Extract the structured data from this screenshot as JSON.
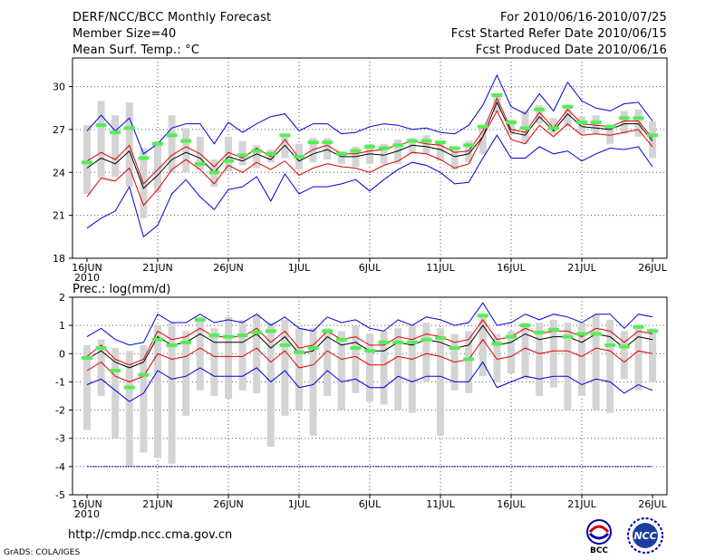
{
  "header": {
    "title": "DERF/NCC/BCC Monthly Forecast",
    "member_size": "Member Size=40",
    "variable": "Mean Surf. Temp.: °C",
    "forecast_period": "For 2010/06/16-2010/07/25",
    "started": "Fcst Started Refer Date 2010/06/15",
    "produced": "Fcst Produced Date 2010/06/16"
  },
  "footer": {
    "url": "http://cmdp.ncc.cma.gov.cn",
    "grads": "GrADS: COLA/IGES",
    "logo_left": "BCC",
    "logo_right": "NCC"
  },
  "colors": {
    "max_line": "#0000dd",
    "min_line": "#0000dd",
    "quantile_line": "#dd0000",
    "mean_line": "#000000",
    "box": "#d4d4d4",
    "marker": "#55ee55",
    "grid": "#555555"
  },
  "chart_data": [
    {
      "type": "line",
      "title": "Mean Surf. Temp.: °C",
      "ylim": [
        18,
        32
      ],
      "yticks": [
        18,
        21,
        24,
        27,
        30
      ],
      "x_tick_days": [
        0,
        5,
        10,
        15,
        20,
        25,
        30,
        35,
        40
      ],
      "x_tick_labels": [
        "16JUN",
        "21JUN",
        "26JUN",
        "1JUL",
        "6JUL",
        "11JUL",
        "16JUL",
        "21JUL",
        "26JUL"
      ],
      "x_year_label": "2010",
      "series": [
        {
          "name": "max",
          "values": [
            20.1,
            20.8,
            21.3,
            23.0,
            19.5,
            20.3,
            22.5,
            23.5,
            22.3,
            21.4,
            22.8,
            23.0,
            23.7,
            22.0,
            23.9,
            22.5,
            23.0,
            23.0,
            23.2,
            23.5,
            22.7,
            23.5,
            24.2,
            24.7,
            24.5,
            24.0,
            23.2,
            23.3,
            25.0,
            26.6,
            25.0,
            25.0,
            25.8,
            25.3,
            25.5,
            24.8,
            25.3,
            25.7,
            25.6,
            25.8,
            24.4
          ]
        },
        {
          "name": "upper",
          "values": [
            22.3,
            23.6,
            23.4,
            24.3,
            21.7,
            22.8,
            24.2,
            24.9,
            24.2,
            23.2,
            24.5,
            24.0,
            24.7,
            24.2,
            24.8,
            23.8,
            24.3,
            24.6,
            24.4,
            24.3,
            24.0,
            24.5,
            24.8,
            25.4,
            25.3,
            24.9,
            24.3,
            24.6,
            26.5,
            28.3,
            26.3,
            26.0,
            27.3,
            26.5,
            27.4,
            26.6,
            26.7,
            26.6,
            26.8,
            27.0,
            25.8
          ]
        },
        {
          "name": "mean",
          "values": [
            24.3,
            25.0,
            24.6,
            25.5,
            22.9,
            23.8,
            24.9,
            25.4,
            25.0,
            24.0,
            25.1,
            24.8,
            25.3,
            24.9,
            25.9,
            24.8,
            25.3,
            25.6,
            25.1,
            25.1,
            25.3,
            25.2,
            25.5,
            25.9,
            25.8,
            25.6,
            25.1,
            25.3,
            26.5,
            28.9,
            26.8,
            26.6,
            27.9,
            26.9,
            28.1,
            27.2,
            27.1,
            27.0,
            27.4,
            27.4,
            26.2
          ]
        },
        {
          "name": "lower",
          "values": [
            24.8,
            25.4,
            24.9,
            25.9,
            23.2,
            24.2,
            25.2,
            25.8,
            25.3,
            24.4,
            25.4,
            25.0,
            25.7,
            25.1,
            26.3,
            25.0,
            25.6,
            25.9,
            25.3,
            25.3,
            25.5,
            25.6,
            25.9,
            26.2,
            26.0,
            25.9,
            25.4,
            25.5,
            26.9,
            29.2,
            27.0,
            26.8,
            28.2,
            27.1,
            28.4,
            27.4,
            27.3,
            27.2,
            27.6,
            27.6,
            26.4
          ]
        },
        {
          "name": "min",
          "values": [
            26.9,
            28.0,
            26.9,
            27.8,
            25.3,
            26.0,
            27.1,
            27.4,
            27.4,
            26.0,
            27.5,
            26.8,
            27.4,
            27.9,
            28.1,
            26.9,
            27.4,
            27.4,
            26.7,
            26.8,
            27.2,
            27.4,
            27.3,
            27.0,
            27.1,
            26.8,
            26.7,
            27.3,
            28.7,
            30.8,
            28.6,
            28.1,
            29.5,
            28.3,
            30.3,
            29.0,
            28.5,
            28.3,
            28.8,
            28.9,
            27.6
          ]
        },
        {
          "name": "box_low",
          "values": [
            22.5,
            23.6,
            23.7,
            23.0,
            20.8,
            22.6,
            24.0,
            24.0,
            24.2,
            23.0,
            24.1,
            24.5,
            24.3,
            24.7,
            25.0,
            24.2,
            24.7,
            24.9,
            24.6,
            24.4,
            24.6,
            24.6,
            24.6,
            25.3,
            25.3,
            24.8,
            24.2,
            24.7,
            25.3,
            28.2,
            26.7,
            26.0,
            27.4,
            26.7,
            27.2,
            26.7,
            26.7,
            26.0,
            26.7,
            26.5,
            25.0
          ]
        },
        {
          "name": "box_high",
          "values": [
            27.3,
            29.0,
            28.0,
            28.9,
            25.7,
            26.2,
            28.0,
            27.1,
            26.5,
            24.9,
            26.5,
            26.2,
            25.9,
            25.6,
            26.6,
            26.0,
            26.4,
            26.4,
            25.5,
            25.8,
            26.0,
            26.0,
            26.3,
            26.4,
            26.6,
            26.2,
            25.7,
            26.2,
            27.1,
            29.5,
            27.7,
            28.3,
            28.7,
            27.8,
            28.7,
            27.9,
            28.0,
            27.3,
            28.3,
            28.4,
            27.6
          ]
        },
        {
          "name": "marker",
          "values": [
            24.7,
            27.3,
            26.8,
            27.1,
            25.0,
            26.0,
            26.6,
            26.2,
            24.6,
            24.0,
            24.8,
            25.2,
            25.5,
            25.3,
            26.6,
            25.1,
            26.1,
            26.1,
            25.3,
            25.5,
            25.8,
            25.7,
            25.9,
            26.2,
            26.2,
            26.1,
            25.7,
            25.9,
            27.2,
            29.4,
            27.5,
            27.1,
            28.4,
            27.1,
            28.6,
            27.5,
            27.5,
            27.2,
            27.8,
            27.8,
            26.6
          ]
        }
      ]
    },
    {
      "type": "line",
      "title": "Prec.: log(mm/d)",
      "ylim": [
        -5,
        2
      ],
      "yticks": [
        -5,
        -4,
        -3,
        -2,
        -1,
        0,
        1,
        2
      ],
      "x_tick_days": [
        0,
        5,
        10,
        15,
        20,
        25,
        30,
        35,
        40
      ],
      "x_tick_labels": [
        "16JUN",
        "21JUN",
        "26JUN",
        "1JUL",
        "6JUL",
        "11JUL",
        "16JUL",
        "21JUL",
        "26JUL"
      ],
      "x_year_label": "2010",
      "reference_line": -4.0,
      "series": [
        {
          "name": "max",
          "values": [
            0.6,
            0.9,
            0.5,
            0.3,
            0.4,
            1.4,
            1.1,
            1.1,
            1.4,
            1.1,
            1.2,
            1.1,
            1.4,
            1.0,
            1.3,
            0.9,
            0.8,
            1.3,
            1.1,
            1.2,
            0.9,
            0.8,
            1.2,
            1.0,
            1.3,
            1.2,
            1.0,
            1.1,
            1.8,
            1.0,
            1.1,
            1.4,
            1.2,
            1.4,
            1.3,
            1.1,
            1.4,
            1.4,
            0.9,
            1.4,
            1.3
          ]
        },
        {
          "name": "upper",
          "values": [
            -0.1,
            0.3,
            -0.2,
            -0.4,
            -0.2,
            0.8,
            0.5,
            0.6,
            0.9,
            0.6,
            0.6,
            0.6,
            0.9,
            0.4,
            0.8,
            0.2,
            0.3,
            0.8,
            0.5,
            0.6,
            0.3,
            0.3,
            0.6,
            0.5,
            0.7,
            0.6,
            0.4,
            0.5,
            1.2,
            0.5,
            0.6,
            0.9,
            0.7,
            0.8,
            0.8,
            0.6,
            0.9,
            0.8,
            0.4,
            0.8,
            0.7
          ]
        },
        {
          "name": "mean",
          "values": [
            -0.2,
            0.1,
            -0.3,
            -0.5,
            -0.3,
            0.6,
            0.3,
            0.4,
            0.7,
            0.4,
            0.4,
            0.4,
            0.7,
            0.2,
            0.6,
            0.0,
            0.1,
            0.6,
            0.3,
            0.4,
            0.1,
            0.1,
            0.4,
            0.3,
            0.5,
            0.4,
            0.2,
            0.3,
            1.0,
            0.3,
            0.4,
            0.7,
            0.5,
            0.6,
            0.6,
            0.4,
            0.7,
            0.6,
            0.2,
            0.6,
            0.5
          ]
        },
        {
          "name": "lower",
          "values": [
            -0.6,
            -0.3,
            -0.8,
            -1.0,
            -0.8,
            0.0,
            -0.2,
            -0.1,
            0.2,
            -0.1,
            -0.1,
            -0.1,
            0.2,
            -0.3,
            0.1,
            -0.5,
            -0.4,
            0.1,
            -0.2,
            -0.1,
            -0.4,
            -0.4,
            -0.1,
            -0.2,
            0.0,
            -0.1,
            -0.3,
            -0.2,
            0.5,
            -0.2,
            -0.1,
            0.2,
            0.0,
            0.1,
            0.1,
            -0.1,
            0.2,
            0.1,
            -0.3,
            0.1,
            0.0
          ]
        },
        {
          "name": "min",
          "values": [
            -1.1,
            -0.9,
            -1.3,
            -1.7,
            -1.4,
            -0.6,
            -0.9,
            -0.8,
            -0.5,
            -0.8,
            -0.8,
            -0.8,
            -0.5,
            -1.0,
            -0.6,
            -1.2,
            -1.1,
            -0.6,
            -1.0,
            -0.9,
            -1.2,
            -1.2,
            -0.8,
            -1.0,
            -0.8,
            -0.8,
            -1.0,
            -1.0,
            -0.3,
            -1.2,
            -1.0,
            -0.8,
            -0.9,
            -0.8,
            -0.8,
            -1.1,
            -0.9,
            -1.0,
            -1.4,
            -1.1,
            -1.3
          ]
        },
        {
          "name": "box_low",
          "values": [
            -2.7,
            -1.5,
            -3.0,
            -4.0,
            -3.5,
            -3.7,
            -3.9,
            -2.2,
            -1.3,
            -1.5,
            -1.6,
            -1.3,
            -1.4,
            -3.3,
            -2.2,
            -2.0,
            -2.9,
            -1.5,
            -2.0,
            -1.4,
            -1.7,
            -1.8,
            -2.0,
            -2.1,
            -1.0,
            -2.9,
            -1.3,
            -1.4,
            -0.8,
            -1.0,
            -0.7,
            -0.9,
            -1.5,
            -1.2,
            -2.0,
            -1.5,
            -2.0,
            -2.1,
            -0.9,
            -1.3,
            -1.0
          ]
        },
        {
          "name": "box_high",
          "values": [
            0.3,
            0.5,
            0.2,
            0.1,
            0.3,
            1.0,
            1.1,
            0.8,
            1.3,
            0.9,
            1.3,
            1.2,
            1.4,
            1.1,
            1.2,
            0.9,
            0.9,
            0.9,
            0.8,
            1.0,
            0.7,
            0.8,
            0.9,
            1.0,
            1.1,
            0.9,
            0.7,
            0.8,
            1.3,
            0.7,
            0.8,
            1.1,
            1.1,
            1.2,
            1.1,
            1.1,
            1.4,
            1.2,
            0.8,
            1.0,
            0.9
          ]
        },
        {
          "name": "marker",
          "values": [
            -0.15,
            0.2,
            -0.6,
            -1.2,
            -0.75,
            0.5,
            0.3,
            0.4,
            1.2,
            0.65,
            0.6,
            0.65,
            0.75,
            0.8,
            0.3,
            0.05,
            0.2,
            0.8,
            0.5,
            0.2,
            0.1,
            0.4,
            0.4,
            0.4,
            0.5,
            0.55,
            0.2,
            -0.2,
            1.35,
            0.35,
            0.6,
            1.0,
            0.75,
            0.85,
            0.6,
            0.7,
            0.7,
            0.3,
            0.25,
            0.95,
            0.8
          ]
        }
      ]
    }
  ]
}
